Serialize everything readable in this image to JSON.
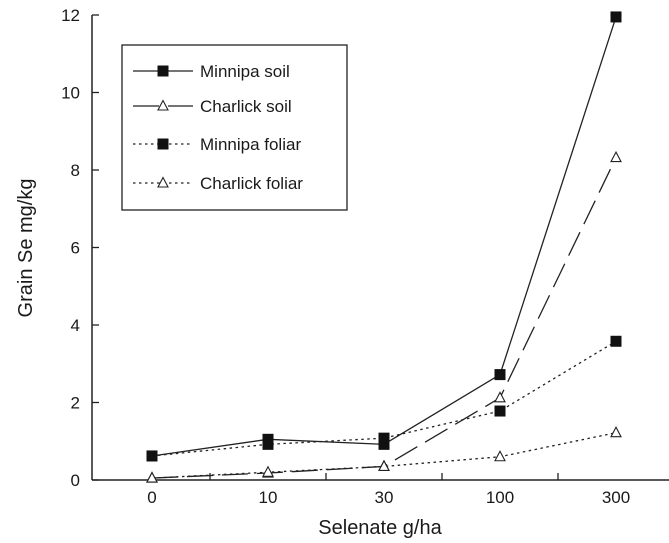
{
  "chart_data": {
    "type": "line",
    "title": "",
    "xlabel": "Selenate g/ha",
    "ylabel": "Grain Se mg/kg",
    "categories": [
      "0",
      "10",
      "30",
      "100",
      "300"
    ],
    "ylim": [
      0,
      12
    ],
    "yticks": [
      "0",
      "2",
      "4",
      "6",
      "8",
      "10",
      "12"
    ],
    "grid": false,
    "legend_position": "top-left",
    "series": [
      {
        "name": "Minnipa soil",
        "marker": "square-filled",
        "line": "solid",
        "values": [
          0.62,
          1.05,
          0.92,
          2.72,
          11.95
        ]
      },
      {
        "name": "Charlick soil",
        "marker": "triangle-open",
        "line": "long-dash",
        "values": [
          0.05,
          0.18,
          0.35,
          2.12,
          8.32
        ]
      },
      {
        "name": "Minnipa foliar",
        "marker": "square-filled",
        "line": "dotted",
        "values": [
          0.62,
          0.92,
          1.08,
          1.78,
          3.58
        ]
      },
      {
        "name": "Charlick foliar",
        "marker": "triangle-open",
        "line": "dotted",
        "values": [
          0.05,
          0.2,
          0.35,
          0.6,
          1.22
        ]
      }
    ]
  }
}
